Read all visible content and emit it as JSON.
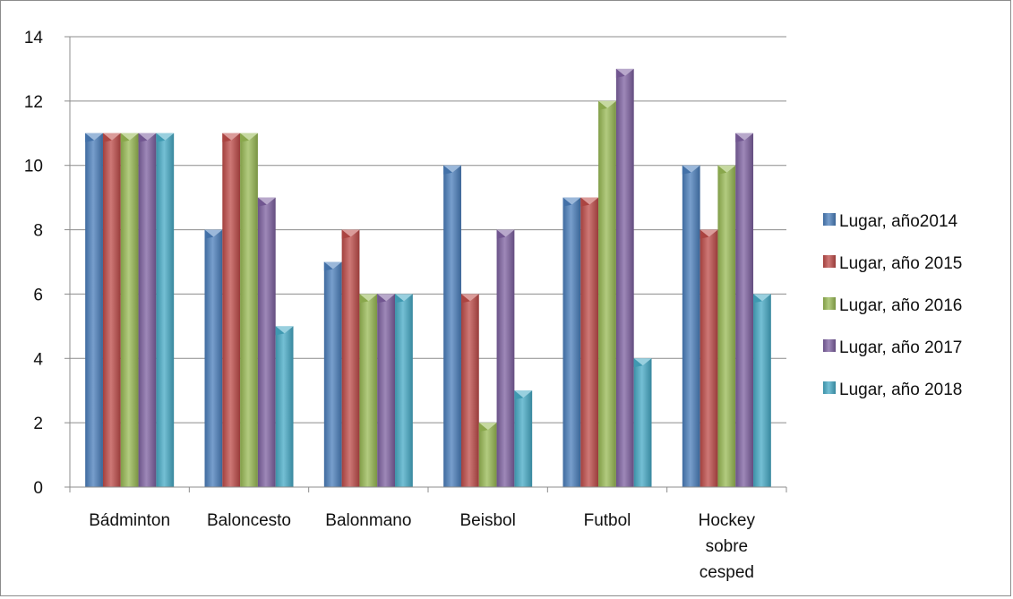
{
  "chart_data": {
    "type": "bar",
    "categories": [
      [
        "Bádminton"
      ],
      [
        "Baloncesto"
      ],
      [
        "Balonmano"
      ],
      [
        "Beisbol"
      ],
      [
        "Futbol"
      ],
      [
        "Hockey",
        "sobre",
        "cesped"
      ]
    ],
    "series": [
      {
        "name": "Lugar, año2014",
        "color": "#4a7ebb",
        "values": [
          11,
          8,
          7,
          10,
          9,
          10
        ]
      },
      {
        "name": "Lugar, año 2015",
        "color": "#be4b48",
        "values": [
          11,
          11,
          8,
          6,
          9,
          8
        ]
      },
      {
        "name": "Lugar, año 2016",
        "color": "#98b954",
        "values": [
          11,
          11,
          6,
          2,
          12,
          10
        ]
      },
      {
        "name": "Lugar, año 2017",
        "color": "#7d60a0",
        "values": [
          11,
          9,
          6,
          8,
          13,
          11
        ]
      },
      {
        "name": "Lugar, año 2018",
        "color": "#46aac5",
        "values": [
          11,
          5,
          6,
          3,
          4,
          6
        ]
      }
    ],
    "yticks": [
      "0",
      "2",
      "4",
      "6",
      "8",
      "10",
      "12",
      "14"
    ],
    "ylim": [
      0,
      14
    ],
    "grid": true,
    "legend_position": "right",
    "title": "",
    "xlabel": "",
    "ylabel": ""
  }
}
